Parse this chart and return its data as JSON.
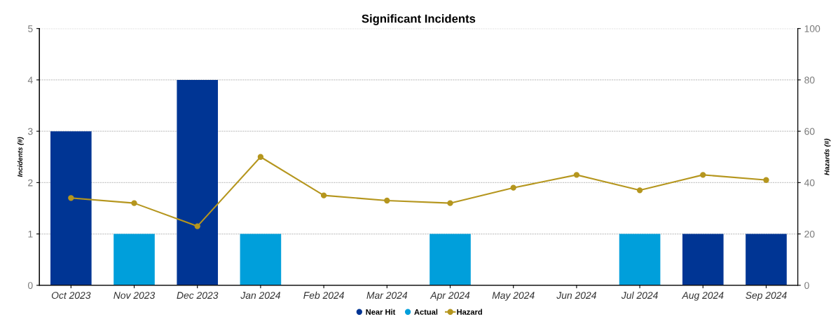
{
  "chart_data": {
    "type": "bar",
    "title": "Significant Incidents",
    "ylabel": "Incidents (#)",
    "y2label": "Hazards (#)",
    "categories": [
      "Oct 2023",
      "Nov 2023",
      "Dec 2023",
      "Jan 2024",
      "Feb 2024",
      "Mar 2024",
      "Apr 2024",
      "May 2024",
      "Jun 2024",
      "Jul 2024",
      "Aug 2024",
      "Sep 2024"
    ],
    "stacked": true,
    "series": [
      {
        "name": "Near Hit",
        "color": "#003594",
        "values": [
          3,
          null,
          4,
          null,
          null,
          null,
          null,
          null,
          null,
          null,
          1,
          1
        ]
      },
      {
        "name": "Actual",
        "color": "#009fdb",
        "values": [
          null,
          1,
          null,
          1,
          null,
          null,
          1,
          null,
          null,
          1,
          null,
          null
        ]
      },
      {
        "name": "Hazard",
        "type": "line",
        "axis": "y2",
        "color": "#b5961e",
        "values": [
          34,
          32,
          23,
          50,
          35,
          33,
          32,
          38,
          43,
          37,
          43,
          41
        ]
      }
    ],
    "ylim": [
      0,
      5
    ],
    "yticks": [
      0,
      1,
      2,
      3,
      4,
      5
    ],
    "y2lim": [
      0,
      100
    ],
    "y2ticks": [
      0,
      20,
      40,
      60,
      80,
      100
    ],
    "grid": "y",
    "legend": "bottom",
    "marker": "circle",
    "line_style": "solid"
  }
}
